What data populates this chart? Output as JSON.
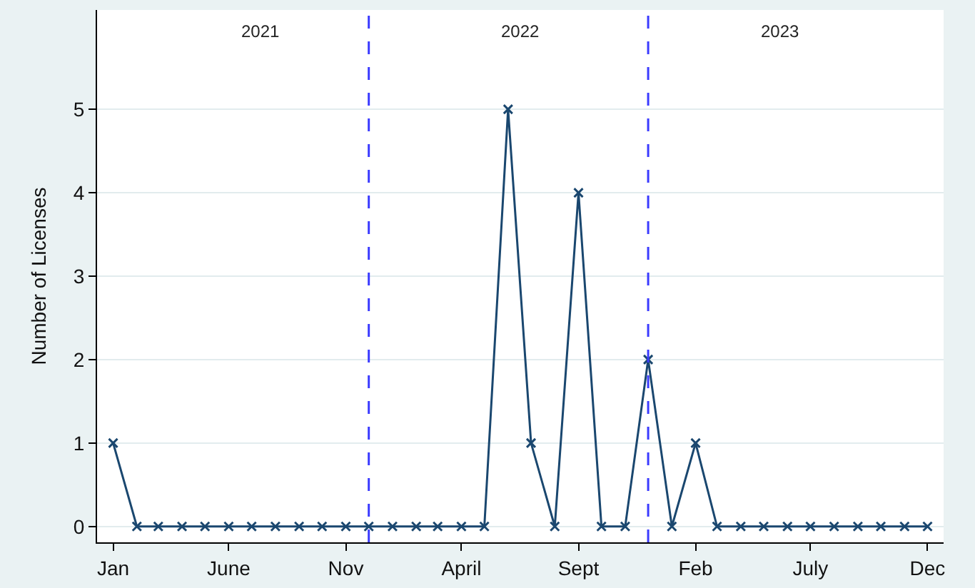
{
  "chart_data": {
    "type": "line",
    "ylabel": "Number of Licenses",
    "x": [
      "2021-01",
      "2021-02",
      "2021-03",
      "2021-04",
      "2021-05",
      "2021-06",
      "2021-07",
      "2021-08",
      "2021-09",
      "2021-10",
      "2021-11",
      "2021-12",
      "2022-01",
      "2022-02",
      "2022-03",
      "2022-04",
      "2022-05",
      "2022-06",
      "2022-07",
      "2022-08",
      "2022-09",
      "2022-10",
      "2022-11",
      "2022-12",
      "2023-01",
      "2023-02",
      "2023-03",
      "2023-04",
      "2023-05",
      "2023-06",
      "2023-07",
      "2023-08",
      "2023-09",
      "2023-10",
      "2023-11",
      "2023-12"
    ],
    "series": [
      {
        "color": "#1a476f",
        "values": [
          1,
          0,
          0,
          0,
          0,
          0,
          0,
          0,
          0,
          0,
          0,
          0,
          0,
          0,
          0,
          0,
          0,
          5,
          1,
          0,
          4,
          0,
          0,
          2,
          0,
          1,
          0,
          0,
          0,
          0,
          0,
          0,
          0,
          0,
          0,
          0
        ]
      }
    ],
    "xlim": [
      "2020-12-11",
      "2023-12-22"
    ],
    "xticks": [
      {
        "value": "2021-01",
        "label": "Jan"
      },
      {
        "value": "2021-06",
        "label": "June"
      },
      {
        "value": "2021-11",
        "label": "Nov"
      },
      {
        "value": "2022-04",
        "label": "April"
      },
      {
        "value": "2022-09",
        "label": "Sept"
      },
      {
        "value": "2023-02",
        "label": "Feb"
      },
      {
        "value": "2023-07",
        "label": "July"
      },
      {
        "value": "2023-12",
        "label": "Dec"
      }
    ],
    "ylim": [
      -0.19,
      6.19
    ],
    "yticks": [
      0,
      1,
      2,
      3,
      4,
      5
    ],
    "ref_lines": [
      {
        "axis": "x",
        "value": "2021-12",
        "color": "#3b3bff",
        "line_style": "dashed"
      },
      {
        "axis": "x",
        "value": "2022-12",
        "color": "#3b3bff",
        "line_style": "dashed"
      }
    ],
    "annotations": [
      "2021",
      "2022",
      "2023"
    ],
    "grid": "y",
    "marker": "cross",
    "line_style": "solid"
  }
}
